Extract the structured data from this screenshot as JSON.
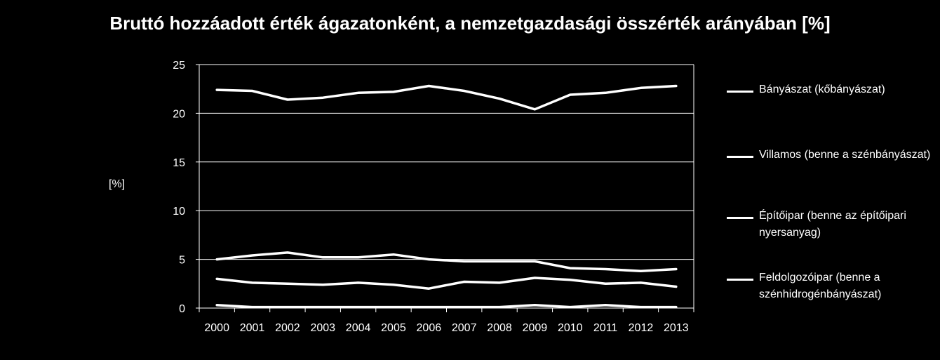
{
  "chart_data": {
    "type": "line",
    "title": "Bruttó hozzáadott érték ágazatonként, a nemzetgazdasági összérték arányában [%]",
    "xlabel": "",
    "ylabel": "[%]",
    "ylim": [
      0,
      25
    ],
    "yticks": [
      0,
      5,
      10,
      15,
      20,
      25
    ],
    "grid": true,
    "legend_position": "right",
    "x": [
      "2000",
      "2001",
      "2002",
      "2003",
      "2004",
      "2005",
      "2006",
      "2007",
      "2008",
      "2009",
      "2010",
      "2011",
      "2012",
      "2013"
    ],
    "series": [
      {
        "name": "Bányászat (kőbányászat)",
        "values": [
          0.3,
          0.1,
          0.1,
          0.1,
          0.1,
          0.1,
          0.1,
          0.1,
          0.1,
          0.3,
          0.1,
          0.3,
          0.1,
          0.1
        ]
      },
      {
        "name": "Villamos  (benne a szénbányászat)",
        "values": [
          3.0,
          2.6,
          2.5,
          2.4,
          2.6,
          2.4,
          2.0,
          2.7,
          2.6,
          3.1,
          2.9,
          2.5,
          2.6,
          2.2
        ]
      },
      {
        "name": "Építőipar (benne az építőipari nyersanyag)",
        "values": [
          5.0,
          5.4,
          5.7,
          5.2,
          5.2,
          5.5,
          5.0,
          4.8,
          4.8,
          4.8,
          4.1,
          4.0,
          3.8,
          4.0
        ]
      },
      {
        "name": "Feldolgozóipar (benne a szénhidrogénbányászat)",
        "values": [
          22.4,
          22.3,
          21.4,
          21.6,
          22.1,
          22.2,
          22.8,
          22.3,
          21.5,
          20.4,
          21.9,
          22.1,
          22.6,
          22.8
        ]
      }
    ],
    "colors": {
      "background": "#000000",
      "line": "#ffffff",
      "grid": "#ffffff"
    }
  }
}
